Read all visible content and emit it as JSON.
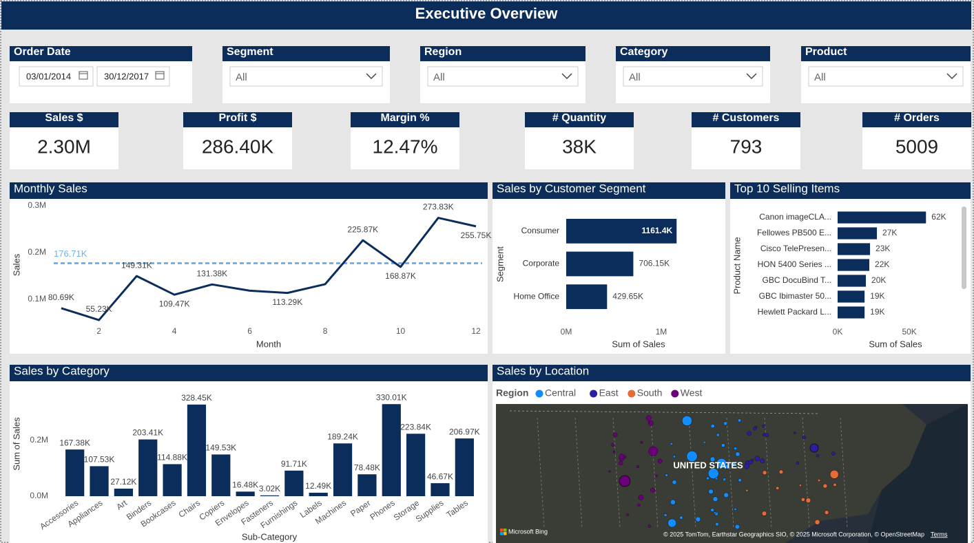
{
  "header": {
    "title": "Executive Overview"
  },
  "filters": [
    {
      "label": "Order Date",
      "start": "03/01/2014",
      "end": "30/12/2017"
    },
    {
      "label": "Segment",
      "value": "All"
    },
    {
      "label": "Region",
      "value": "All"
    },
    {
      "label": "Category",
      "value": "All"
    },
    {
      "label": "Product",
      "value": "All"
    }
  ],
  "kpis": [
    {
      "label": "Sales $",
      "value": "2.30M"
    },
    {
      "label": "Profit $",
      "value": "286.40K"
    },
    {
      "label": "Margin %",
      "value": "12.47%"
    },
    {
      "label": "# Quantity",
      "value": "38K"
    },
    {
      "label": "# Customers",
      "value": 793
    },
    {
      "label": "# Orders",
      "value": 5009
    }
  ],
  "chart_data": [
    {
      "type": "line",
      "title": "Monthly Sales",
      "x_label": "Month",
      "y_label": "Sales",
      "x": [
        1,
        2,
        3,
        4,
        5,
        6,
        7,
        8,
        9,
        10,
        11,
        12
      ],
      "values": [
        80690,
        55230,
        149310,
        109470,
        131380,
        118000,
        113290,
        132000,
        225870,
        168870,
        273830,
        255750
      ],
      "value_labels": [
        "80.69K",
        "55.23K",
        "149.31K",
        "109.47K",
        "131.38K",
        null,
        "113.29K",
        null,
        "225.87K",
        "168.87K",
        "273.83K",
        "255.75K"
      ],
      "color": "#0b2d5b",
      "reference_line": {
        "value": 176710,
        "label": "176.71K",
        "color": "#6fb2f2"
      },
      "xlim": [
        0.6,
        12
      ],
      "xticks": [
        2,
        4,
        6,
        8,
        10,
        12
      ],
      "ylim": [
        45000,
        310000
      ],
      "yticks": [
        {
          "value": 100000,
          "label": "0.1M"
        },
        {
          "value": 200000,
          "label": "0.2M"
        },
        {
          "value": 300000,
          "label": "0.3M"
        }
      ]
    },
    {
      "type": "hbar",
      "title": "Sales by Customer Segment",
      "x_label": "Sum of Sales",
      "y_label": "Segment",
      "categories": [
        "Consumer",
        "Corporate",
        "Home Office"
      ],
      "values": [
        1161400,
        706150,
        429650
      ],
      "value_labels": [
        "1161.4K",
        "706.15K",
        "429.65K"
      ],
      "color": "#0b2d5b",
      "xlim": [
        0,
        1580000
      ],
      "xticks": [
        {
          "value": 0,
          "label": "0M"
        },
        {
          "value": 1000000,
          "label": "1M"
        }
      ]
    },
    {
      "type": "hbar",
      "title": "Top 10 Selling Items",
      "x_label": "Sum of Sales",
      "y_label": "Product Name",
      "categories": [
        "Canon imageCLA...",
        "Fellowes PB500 E...",
        "Cisco TelePresen...",
        "HON 5400 Series ...",
        "GBC DocuBind T...",
        "GBC Ibimaster 50...",
        "Hewlett Packard L..."
      ],
      "values": [
        61600,
        27400,
        22600,
        22100,
        19700,
        18800,
        18800
      ],
      "value_labels": [
        "62K",
        "27K",
        "23K",
        "22K",
        "20K",
        "19K",
        "19K"
      ],
      "color": "#0b2d5b",
      "xlim": [
        0,
        85000
      ],
      "xticks": [
        {
          "value": 0,
          "label": "0K"
        },
        {
          "value": 50000,
          "label": "50K"
        }
      ]
    },
    {
      "type": "bar",
      "title": "Sales by Category",
      "x_label": "Sub-Category",
      "y_label": "Sum of Sales",
      "categories": [
        "Accessories",
        "Appliances",
        "Art",
        "Binders",
        "Bookcases",
        "Chairs",
        "Copiers",
        "Envelopes",
        "Fasteners",
        "Furnishings",
        "Labels",
        "Machines",
        "Paper",
        "Phones",
        "Storage",
        "Supplies",
        "Tables"
      ],
      "values": [
        167380,
        107530,
        27120,
        203410,
        114880,
        328450,
        149530,
        16480,
        3020,
        91710,
        12490,
        189240,
        78480,
        330010,
        223840,
        46670,
        206970
      ],
      "value_labels": [
        "167.38K",
        "107.53K",
        "27.12K",
        "203.41K",
        "114.88K",
        "328.45K",
        "149.53K",
        "16.48K",
        "3.02K",
        "91.71K",
        "12.49K",
        "189.24K",
        "78.48K",
        "330.01K",
        "223.84K",
        "46.67K",
        "206.97K"
      ],
      "color": "#0b2d5b",
      "ylim": [
        0,
        370000
      ],
      "yticks": [
        {
          "value": 0,
          "label": "0.0M"
        },
        {
          "value": 200000,
          "label": "0.2M"
        }
      ]
    },
    {
      "type": "map",
      "title": "Sales by Location",
      "legend_title": "Region",
      "series": [
        {
          "name": "Central",
          "color": "#118dff"
        },
        {
          "name": "East",
          "color": "#2a1fa0"
        },
        {
          "name": "South",
          "color": "#e66c37"
        },
        {
          "name": "West",
          "color": "#6b007b"
        }
      ],
      "place_label": "UNITED STATES",
      "provider": "Microsoft Bing",
      "attribution": "© 2025 TomTom, Earthstar Geographics SIO, © 2025 Microsoft Corporation, © OpenStreetMap",
      "terms": "Terms"
    }
  ]
}
